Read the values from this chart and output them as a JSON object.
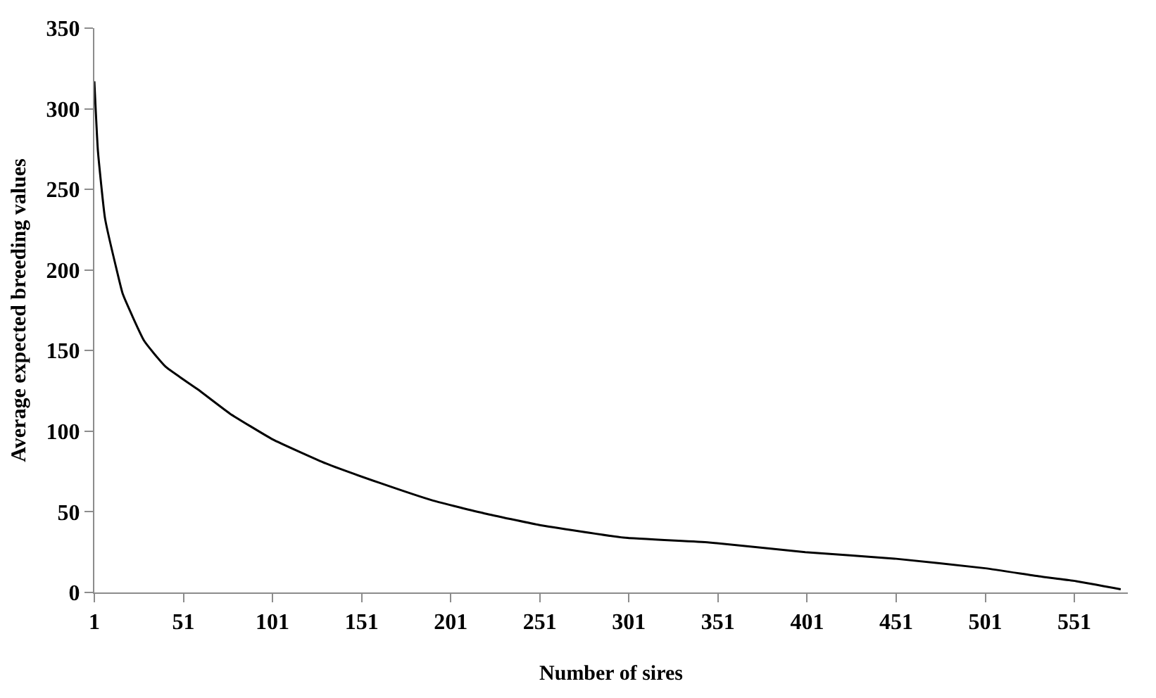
{
  "chart_data": {
    "type": "line",
    "xlabel": "Number of sires",
    "ylabel": "Average expected breeding values",
    "x": [
      1,
      3,
      7,
      14,
      17,
      29,
      41,
      59,
      77,
      101,
      131,
      161,
      191,
      220,
      250,
      298,
      346,
      400,
      450,
      501,
      531,
      552,
      577
    ],
    "series": [
      {
        "color": "#000000",
        "values": [
          317,
          274,
          232,
          198,
          185,
          156,
          140,
          126,
          111,
          95,
          80,
          68,
          57,
          49,
          42,
          34,
          31,
          25,
          21,
          15,
          10,
          7,
          2
        ]
      }
    ],
    "xlim": [
      1,
      581
    ],
    "xticks": [
      1,
      51,
      101,
      151,
      201,
      251,
      301,
      351,
      401,
      451,
      501,
      551
    ],
    "ylim": [
      0,
      350
    ],
    "yticks": [
      0,
      50,
      100,
      150,
      200,
      250,
      300,
      350
    ],
    "marker": "none",
    "line_style": "solid"
  }
}
